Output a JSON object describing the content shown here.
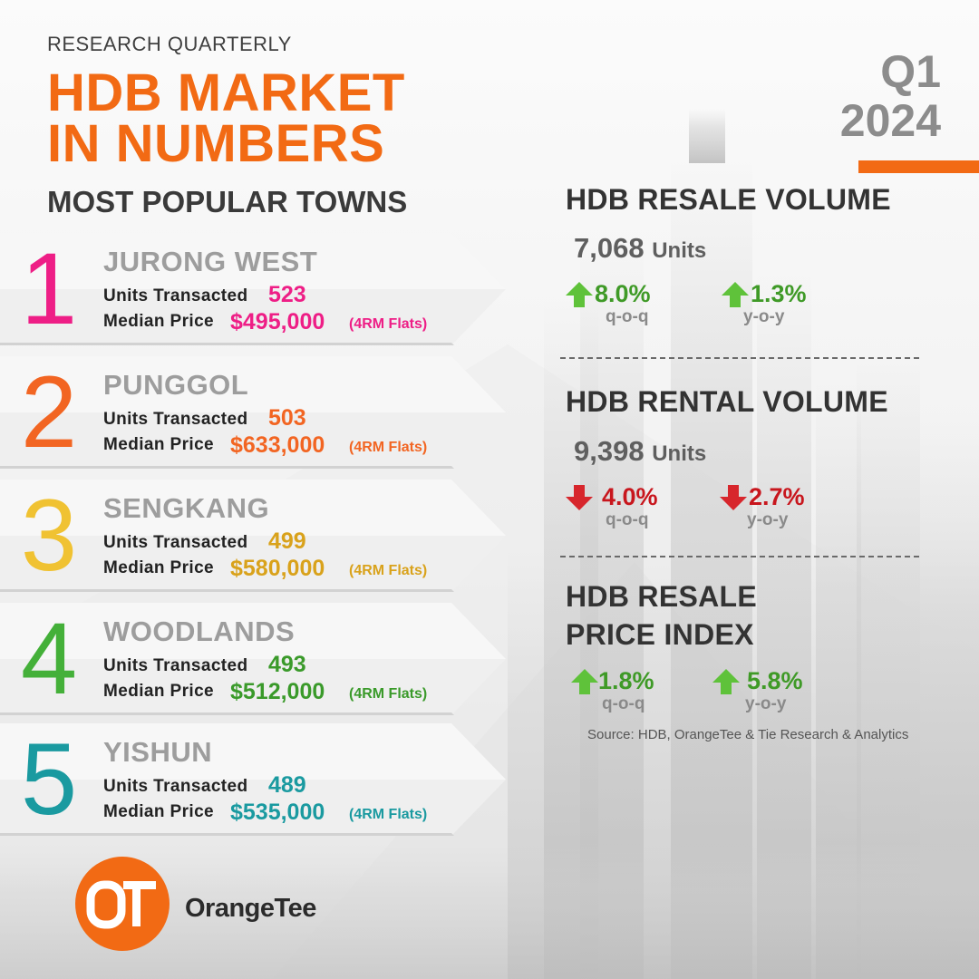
{
  "header": {
    "eyebrow": "RESEARCH QUARTERLY",
    "title_line1": "HDB MARKET",
    "title_line2": "IN NUMBERS",
    "quarter": "Q1",
    "year": "2024",
    "accent_color": "#f26a14"
  },
  "towns_section": {
    "heading": "MOST POPULAR TOWNS",
    "units_label": "Units Transacted",
    "price_label": "Median Price",
    "towns": [
      {
        "rank": "1",
        "name": "JURONG WEST",
        "units": "523",
        "price": "$495,000",
        "flat": "(4RM Flats)",
        "color": "#ee1e86"
      },
      {
        "rank": "2",
        "name": "PUNGGOL",
        "units": "503",
        "price": "$633,000",
        "flat": "(4RM Flats)",
        "color": "#f26522"
      },
      {
        "rank": "3",
        "name": "SENGKANG",
        "units": "499",
        "price": "$580,000",
        "flat": "(4RM Flats)",
        "color": "#d9a21b"
      },
      {
        "rank": "4",
        "name": "WOODLANDS",
        "units": "493",
        "price": "$512,000",
        "flat": "(4RM Flats)",
        "color": "#3a9a2a"
      },
      {
        "rank": "5",
        "name": "YISHUN",
        "units": "489",
        "price": "$535,000",
        "flat": "(4RM Flats)",
        "color": "#1a9aa0"
      }
    ]
  },
  "resale_volume": {
    "heading": "HDB RESALE VOLUME",
    "value": "7,068",
    "unit": "Units",
    "qoq": {
      "value": "8.0%",
      "label": "q-o-q",
      "direction": "up"
    },
    "yoy": {
      "value": "1.3%",
      "label": "y-o-y",
      "direction": "up"
    }
  },
  "rental_volume": {
    "heading": "HDB RENTAL VOLUME",
    "value": "9,398",
    "unit": "Units",
    "qoq": {
      "value": "4.0%",
      "label": "q-o-q",
      "direction": "down"
    },
    "yoy": {
      "value": "2.7%",
      "label": "y-o-y",
      "direction": "down"
    }
  },
  "price_index": {
    "heading_line1": "HDB RESALE",
    "heading_line2": "PRICE INDEX",
    "qoq": {
      "value": "1.8%",
      "label": "q-o-q",
      "direction": "up"
    },
    "yoy": {
      "value": "5.8%",
      "label": "y-o-y",
      "direction": "up"
    }
  },
  "colors": {
    "up": "#3f9a27",
    "down": "#c8161d"
  },
  "source": "Source: HDB, OrangeTee  & Tie Research  & Analytics",
  "logo": {
    "mark": "OT",
    "name": "OrangeTee"
  }
}
